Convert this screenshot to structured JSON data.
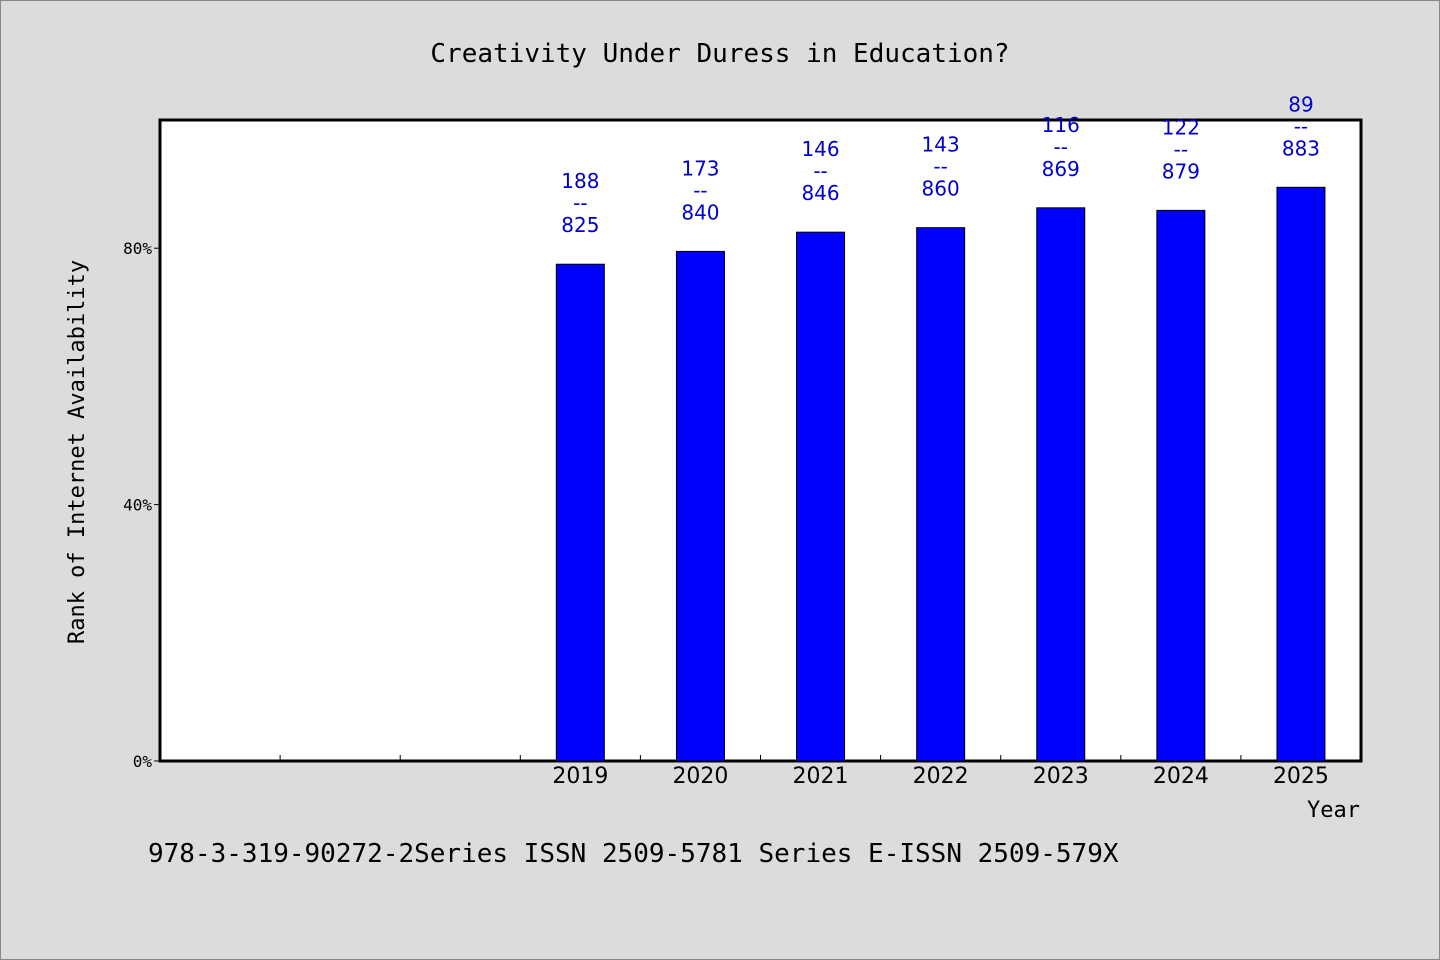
{
  "chart_data": {
    "type": "bar",
    "title": "Creativity Under Duress in Education?",
    "xlabel": "Year",
    "ylabel": "Rank of Internet Availability",
    "categories": [
      "2019",
      "2020",
      "2021",
      "2022",
      "2023",
      "2024",
      "2025"
    ],
    "series": [
      {
        "values": [
          77.5,
          79.5,
          82.5,
          83.2,
          86.3,
          85.9,
          89.5
        ],
        "data_labels": [
          [
            "188",
            "--",
            "825"
          ],
          [
            "173",
            "--",
            "840"
          ],
          [
            "146",
            "--",
            "846"
          ],
          [
            "143",
            "--",
            "860"
          ],
          [
            "116",
            "--",
            "869"
          ],
          [
            "122",
            "--",
            "879"
          ],
          [
            "89",
            "--",
            "883"
          ]
        ]
      }
    ],
    "ylim": [
      0,
      100
    ],
    "yticks": [
      0,
      40,
      80
    ],
    "ytick_labels": [
      "0%",
      "40%",
      "80%"
    ],
    "x_slots": 10,
    "grid": false,
    "bar_color": "#0000ff",
    "label_color": "#0000cc"
  },
  "footer": {
    "text": "978-3-319-90272-2Series ISSN 2509-5781 Series E-ISSN 2509-579X"
  }
}
